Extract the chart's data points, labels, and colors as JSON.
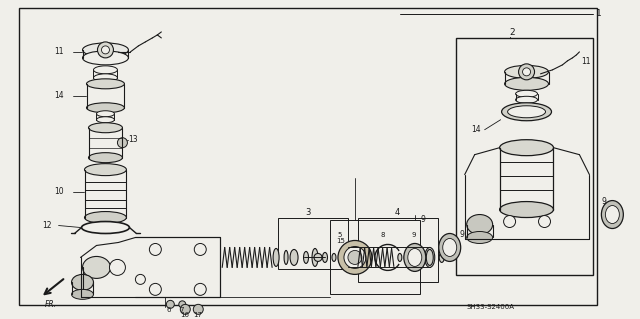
{
  "bg_color": "#f0efea",
  "line_color": "#1a1a1a",
  "diagram_code": "SH33-S2400A",
  "fig_w": 6.4,
  "fig_h": 3.19
}
